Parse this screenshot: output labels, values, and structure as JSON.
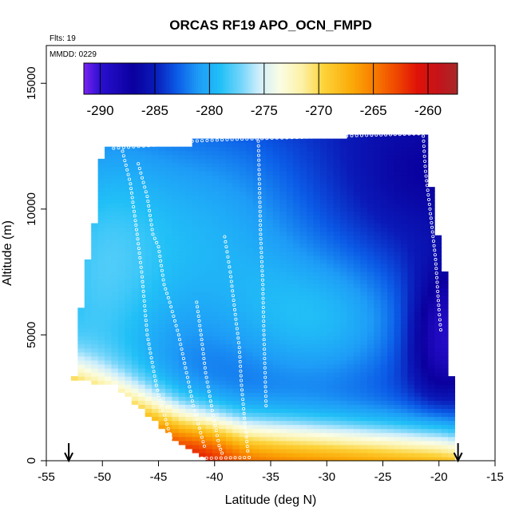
{
  "chart_data": {
    "type": "heatmap",
    "title": "ORCAS RF19 APO_OCN_FMPD",
    "corner_labels": [
      "Flts: 19",
      "MMDD: 0229"
    ],
    "xlabel": "Latitude (deg N)",
    "ylabel": "Altitude (m)",
    "xlim": [
      -55,
      -15
    ],
    "ylim": [
      0,
      16500
    ],
    "x_ticks": [
      -55,
      -50,
      -45,
      -40,
      -35,
      -30,
      -25,
      -20,
      -15
    ],
    "y_ticks": [
      0,
      5000,
      10000,
      15000
    ],
    "colorbar": {
      "min": -291.5,
      "max": -257.3,
      "ticks": [
        -290,
        -285,
        -280,
        -275,
        -270,
        -265,
        -260
      ],
      "stops": [
        {
          "value": -291.5,
          "color": "#7a24f2"
        },
        {
          "value": -290.0,
          "color": "#2a0fd0"
        },
        {
          "value": -287.0,
          "color": "#0a009e"
        },
        {
          "value": -285.0,
          "color": "#0a1ab8"
        },
        {
          "value": -283.0,
          "color": "#0b5ae6"
        },
        {
          "value": -281.0,
          "color": "#1e9cf7"
        },
        {
          "value": -279.0,
          "color": "#21c0f7"
        },
        {
          "value": -277.0,
          "color": "#79d6fa"
        },
        {
          "value": -275.5,
          "color": "#cdeefc"
        },
        {
          "value": -273.5,
          "color": "#fbfde3"
        },
        {
          "value": -271.5,
          "color": "#fcf1a4"
        },
        {
          "value": -269.5,
          "color": "#fcd238"
        },
        {
          "value": -267.0,
          "color": "#fbab08"
        },
        {
          "value": -265.0,
          "color": "#f87e00"
        },
        {
          "value": -263.0,
          "color": "#f04a00"
        },
        {
          "value": -261.0,
          "color": "#e01208"
        },
        {
          "value": -259.0,
          "color": "#c4141a"
        },
        {
          "value": -257.3,
          "color": "#a72828"
        }
      ]
    },
    "range_markers_lat": [
      -53,
      -18.3
    ],
    "domain": {
      "left_edge": [
        [
          0,
          -40.3
        ],
        [
          800,
          -43.5
        ],
        [
          1500,
          -45.2
        ],
        [
          2300,
          -47.2
        ],
        [
          3000,
          -49.0
        ],
        [
          3200,
          -52.7
        ],
        [
          3700,
          -52.2
        ],
        [
          4700,
          -52.0
        ],
        [
          6000,
          -51.9
        ],
        [
          8000,
          -51.3
        ],
        [
          10000,
          -50.5
        ],
        [
          11000,
          -50.3
        ],
        [
          12000,
          -50.1
        ],
        [
          12500,
          -49.6
        ]
      ],
      "right_edge": [
        [
          0,
          -18.6
        ],
        [
          1800,
          -18.6
        ],
        [
          2600,
          -18.8
        ],
        [
          3300,
          -18.9
        ],
        [
          5000,
          -19.2
        ],
        [
          6500,
          -19.3
        ],
        [
          8000,
          -19.6
        ],
        [
          9000,
          -20.1
        ],
        [
          10000,
          -20.3
        ],
        [
          11500,
          -21.0
        ],
        [
          13000,
          -21.3
        ]
      ],
      "top": [
        [
          -49.6,
          12500
        ],
        [
          -42.0,
          12500
        ],
        [
          -42.0,
          12750
        ],
        [
          -37.0,
          12750
        ],
        [
          -30.0,
          12850
        ],
        [
          -21.3,
          13000
        ]
      ]
    },
    "field": {
      "base_value": -285.5,
      "components": [
        {
          "lat": -51.0,
          "alt": 7000,
          "value": 6.0,
          "sigma_lat": 5,
          "sigma_alt": 5000
        },
        {
          "lat": -40.0,
          "alt": 9000,
          "value": 5.0,
          "sigma_lat": 7,
          "sigma_alt": 3500
        },
        {
          "lat": -30.0,
          "alt": 5500,
          "value": 5.0,
          "sigma_lat": 6,
          "sigma_alt": 2000
        },
        {
          "lat": -19.8,
          "alt": 5000,
          "value": -5.0,
          "sigma_lat": 2,
          "sigma_alt": 1800
        },
        {
          "lat": -21.5,
          "alt": 11500,
          "value": -1.5,
          "sigma_lat": 4,
          "sigma_alt": 1500
        }
      ],
      "surface_layer": {
        "boundary_lat": [
          -53,
          -43,
          -37,
          -20,
          -18.5
        ],
        "boundary_alt": [
          3500,
          1800,
          1200,
          700,
          600
        ],
        "value_below": -261.5,
        "value_above": -274.0,
        "transition": 700
      },
      "core_max": {
        "lat": -41.5,
        "alt": 500,
        "value": -258.5,
        "sigma_lat": 3,
        "sigma_alt": 900
      }
    },
    "flight_tracks": [
      {
        "name": "profile-a",
        "points": [
          [
            -48.2,
            12300
          ],
          [
            -47.5,
            11000
          ],
          [
            -46.9,
            9000
          ],
          [
            -46.5,
            7500
          ],
          [
            -46.0,
            5000
          ],
          [
            -45.2,
            3000
          ],
          [
            -44.6,
            2000
          ],
          [
            -43.9,
            900
          ],
          [
            -43.0,
            200
          ]
        ]
      },
      {
        "name": "profile-b",
        "points": [
          [
            -46.8,
            11800
          ],
          [
            -46.0,
            10500
          ],
          [
            -45.5,
            9000
          ],
          [
            -45.0,
            8500
          ],
          [
            -44.5,
            7000
          ],
          [
            -44.0,
            6300
          ],
          [
            -43.2,
            5000
          ],
          [
            -42.5,
            3500
          ],
          [
            -41.8,
            2000
          ],
          [
            -40.8,
            400
          ]
        ]
      },
      {
        "name": "profile-c",
        "points": [
          [
            -41.6,
            6300
          ],
          [
            -41.2,
            5000
          ],
          [
            -40.8,
            3500
          ],
          [
            -40.2,
            2000
          ],
          [
            -39.6,
            600
          ],
          [
            -39.2,
            150
          ]
        ]
      },
      {
        "name": "profile-d",
        "points": [
          [
            -39.1,
            8900
          ],
          [
            -38.6,
            7500
          ],
          [
            -38.2,
            6000
          ],
          [
            -37.8,
            4500
          ],
          [
            -37.6,
            3000
          ],
          [
            -37.3,
            1500
          ],
          [
            -37.0,
            200
          ]
        ]
      },
      {
        "name": "profile-e",
        "points": [
          [
            -36.1,
            12700
          ],
          [
            -36.0,
            11000
          ],
          [
            -35.9,
            9000
          ],
          [
            -35.7,
            7000
          ],
          [
            -35.6,
            5000
          ],
          [
            -35.5,
            3500
          ],
          [
            -35.4,
            2000
          ]
        ]
      },
      {
        "name": "profile-f",
        "points": [
          [
            -21.4,
            12900
          ],
          [
            -21.2,
            11500
          ],
          [
            -20.8,
            10000
          ],
          [
            -20.3,
            8000
          ],
          [
            -20.0,
            6000
          ],
          [
            -19.8,
            5000
          ]
        ]
      },
      {
        "name": "top-transit",
        "points": [
          [
            -49.0,
            12420
          ],
          [
            -45.0,
            12550
          ],
          [
            -42.0,
            12700
          ],
          [
            -38.0,
            12780
          ],
          [
            -34.0,
            12830
          ],
          [
            -30.0,
            12880
          ],
          [
            -26.0,
            12940
          ],
          [
            -21.4,
            13000
          ]
        ]
      },
      {
        "name": "bottom-transit",
        "points": [
          [
            -44.3,
            150
          ],
          [
            -42.0,
            100
          ],
          [
            -39.0,
            110
          ],
          [
            -36.5,
            130
          ]
        ]
      }
    ],
    "grid": false
  }
}
